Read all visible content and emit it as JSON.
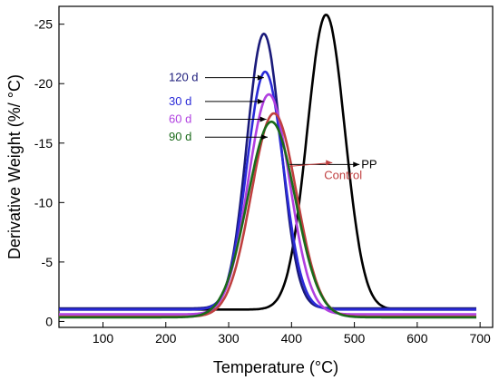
{
  "chart_data": {
    "type": "line",
    "title": "",
    "xlabel": "Temperature (°C)",
    "ylabel": "Derivative Weight (%/ °C)",
    "xlim": [
      30,
      720
    ],
    "ylim": [
      0.5,
      -26.5
    ],
    "y_axis_inverted": true,
    "x_ticks": [
      100,
      200,
      300,
      400,
      500,
      600,
      700
    ],
    "y_ticks": [
      0,
      -5,
      -10,
      -15,
      -20,
      -25
    ],
    "grid": false,
    "series": [
      {
        "name": "PP",
        "color": "#000000",
        "baseline": -1.0,
        "peak_x": 455,
        "peak_y": -25.8,
        "sigma": 30,
        "x_range": [
          30,
          695
        ]
      },
      {
        "name": "120 d",
        "color": "#1a1a7a",
        "baseline": -1.1,
        "peak_x": 356,
        "peak_y": -24.2,
        "sigma": 27,
        "x_range": [
          30,
          695
        ]
      },
      {
        "name": "30 d",
        "color": "#2a2ad8",
        "baseline": -1.0,
        "peak_x": 358,
        "peak_y": -21.0,
        "sigma": 29,
        "x_range": [
          30,
          695
        ]
      },
      {
        "name": "60 d",
        "color": "#b040e0",
        "baseline": -0.6,
        "peak_x": 364,
        "peak_y": -19.1,
        "sigma": 33,
        "x_range": [
          30,
          695
        ]
      },
      {
        "name": "Control",
        "color": "#c04040",
        "baseline": -0.4,
        "peak_x": 372,
        "peak_y": -17.5,
        "sigma": 36,
        "x_range": [
          30,
          695
        ]
      },
      {
        "name": "90 d",
        "color": "#1a6a1a",
        "baseline": -0.35,
        "peak_x": 368,
        "peak_y": -16.8,
        "sigma": 38,
        "x_range": [
          30,
          695
        ]
      }
    ],
    "annotations": [
      {
        "text": "120 d",
        "color": "#1a1a7a",
        "arrow_to": [
          356,
          -20.5
        ]
      },
      {
        "text": "30 d",
        "color": "#2a2ad8",
        "arrow_to": [
          356,
          -18.5
        ]
      },
      {
        "text": "60 d",
        "color": "#b040e0",
        "arrow_to": [
          360,
          -17.0
        ]
      },
      {
        "text": "90 d",
        "color": "#1a6a1a",
        "arrow_to": [
          362,
          -15.5
        ]
      },
      {
        "text": "PP",
        "color": "#000000",
        "arrow_from": [
          397,
          -13.2
        ]
      },
      {
        "text": "Control",
        "color": "#c04040",
        "arrow_from": [
          397,
          -13.2
        ]
      }
    ]
  }
}
